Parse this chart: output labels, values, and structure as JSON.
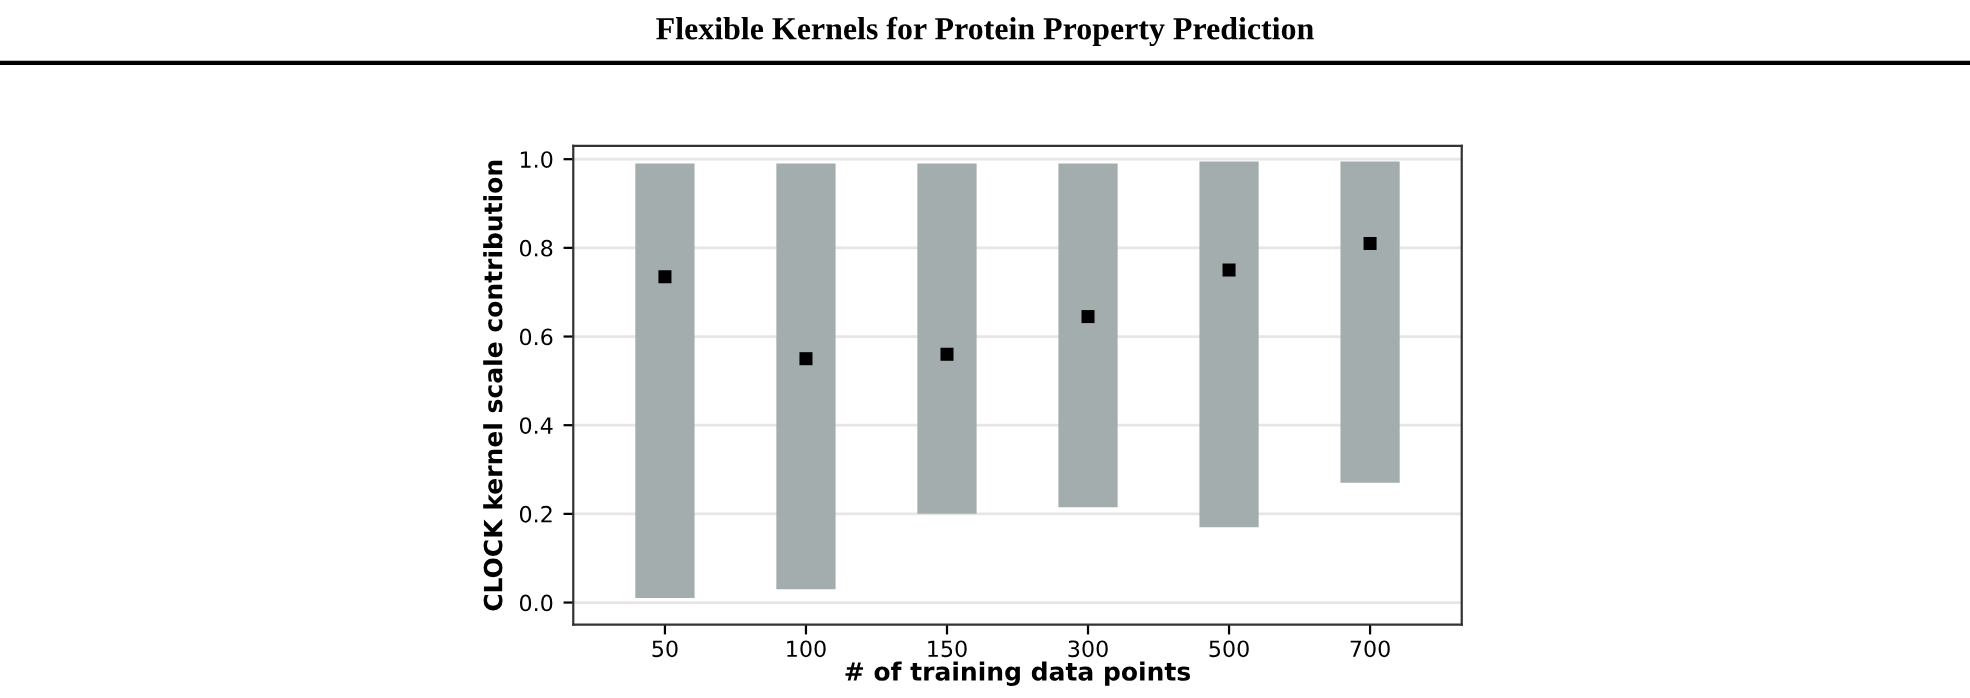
{
  "chart_data": {
    "type": "bar",
    "title": "Flexible Kernels for Protein Property Prediction",
    "xlabel": "# of training data points",
    "ylabel": "CLOCK kernel scale contribution",
    "categories": [
      "50",
      "100",
      "150",
      "300",
      "500",
      "700"
    ],
    "series": [
      {
        "type": "bar",
        "color": "#a3adad",
        "base": [
          0.01,
          0.03,
          0.2,
          0.215,
          0.17,
          0.27
        ],
        "values": [
          0.98,
          0.96,
          0.79,
          0.775,
          0.825,
          0.725
        ]
      },
      {
        "type": "scatter",
        "color": "#000000",
        "marker": "square",
        "x": [
          "50",
          "100",
          "150",
          "300",
          "500",
          "700"
        ],
        "values": [
          0.735,
          0.55,
          0.56,
          0.645,
          0.75,
          0.81
        ]
      }
    ],
    "ylim": [
      -0.05,
      1.03
    ],
    "yticks": [
      {
        "value": 0,
        "label": "0.0"
      },
      {
        "value": 0.2,
        "label": "0.2"
      },
      {
        "value": 0.4,
        "label": "0.4"
      },
      {
        "value": 0.6,
        "label": "0.6"
      },
      {
        "value": 0.8,
        "label": "0.8"
      },
      {
        "value": 1,
        "label": "1.0"
      }
    ],
    "grid": "y"
  }
}
